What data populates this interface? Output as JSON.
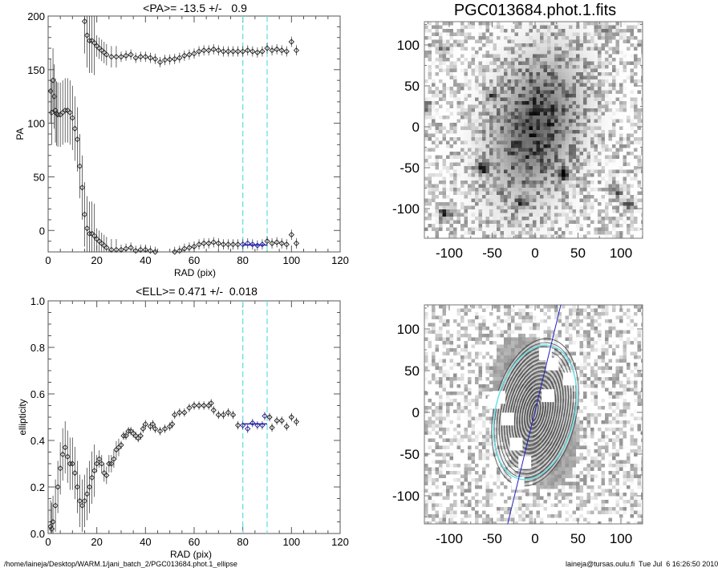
{
  "chart_data": [
    {
      "type": "scatter",
      "title": "<PA>= -13.5 +/-   0.9",
      "xlabel": "RAD (pix)",
      "ylabel": "PA",
      "xlim": [
        0,
        120
      ],
      "ylim": [
        -20,
        200
      ],
      "xticks": [
        "0",
        "20",
        "40",
        "60",
        "80",
        "100",
        "120"
      ],
      "yticks": [
        "0",
        "50",
        "100",
        "150",
        "200"
      ],
      "wrap_offset": 180,
      "mean": {
        "value": -13.5,
        "error": 0.9,
        "range": [
          80,
          90
        ],
        "color": "#2020b0"
      },
      "range_markers": [
        80,
        90
      ],
      "marker_color": "#66e0e8",
      "points": [
        [
          1,
          130
        ],
        [
          1.5,
          110
        ],
        [
          2,
          140
        ],
        [
          2.5,
          125
        ],
        [
          3,
          112
        ],
        [
          3.5,
          109
        ],
        [
          4,
          108
        ],
        [
          5,
          108
        ],
        [
          6,
          110
        ],
        [
          7,
          112
        ],
        [
          8,
          112
        ],
        [
          9,
          110
        ],
        [
          10,
          105
        ],
        [
          11,
          95
        ],
        [
          12,
          85
        ],
        [
          13,
          60
        ],
        [
          14,
          40
        ],
        [
          15,
          15
        ],
        [
          16,
          2
        ],
        [
          17,
          -3
        ],
        [
          18,
          -3
        ],
        [
          19,
          -5
        ],
        [
          20,
          -8
        ],
        [
          21,
          -10
        ],
        [
          22,
          -12
        ],
        [
          23,
          -14
        ],
        [
          24,
          -16
        ],
        [
          26,
          -18
        ],
        [
          28,
          -18
        ],
        [
          30,
          -18
        ],
        [
          32,
          -17
        ],
        [
          34,
          -16
        ],
        [
          36,
          -19
        ],
        [
          38,
          -18
        ],
        [
          40,
          -18
        ],
        [
          42,
          -19
        ],
        [
          44,
          -20
        ],
        [
          46,
          -23
        ],
        [
          48,
          -21
        ],
        [
          50,
          -20.5
        ],
        [
          52,
          -20
        ],
        [
          54,
          -19
        ],
        [
          56,
          -17
        ],
        [
          58,
          -16
        ],
        [
          60,
          -15
        ],
        [
          62,
          -13
        ],
        [
          64,
          -12
        ],
        [
          66,
          -12
        ],
        [
          68,
          -11
        ],
        [
          70,
          -12
        ],
        [
          72,
          -13
        ],
        [
          74,
          -13
        ],
        [
          76,
          -13
        ],
        [
          78,
          -13
        ],
        [
          80,
          -13
        ],
        [
          82,
          -12
        ],
        [
          84,
          -13
        ],
        [
          86,
          -14
        ],
        [
          88,
          -13
        ],
        [
          90,
          -10
        ],
        [
          92,
          -12
        ],
        [
          94,
          -11
        ],
        [
          96,
          -12
        ],
        [
          98,
          -13
        ],
        [
          100,
          -4
        ],
        [
          102,
          -12
        ]
      ]
    },
    {
      "type": "scatter",
      "title": "<ELL>= 0.471 +/-  0.018",
      "xlabel": "RAD (pix)",
      "ylabel": "ellipticity",
      "xlim": [
        0,
        120
      ],
      "ylim": [
        0,
        1
      ],
      "xticks": [
        "0",
        "20",
        "40",
        "60",
        "80",
        "100",
        "120"
      ],
      "yticks": [
        "0.0",
        "0.2",
        "0.4",
        "0.6",
        "0.8",
        "1.0"
      ],
      "mean": {
        "value": 0.471,
        "error": 0.018,
        "range": [
          80,
          90
        ],
        "color": "#2020b0"
      },
      "range_markers": [
        80,
        90
      ],
      "marker_color": "#66e0e8",
      "points": [
        [
          1,
          0.03
        ],
        [
          1.5,
          0.02
        ],
        [
          2,
          0.05
        ],
        [
          3,
          0.12
        ],
        [
          4,
          0.2
        ],
        [
          5,
          0.28
        ],
        [
          6,
          0.34
        ],
        [
          7,
          0.37
        ],
        [
          8,
          0.33
        ],
        [
          9,
          0.3
        ],
        [
          10,
          0.3
        ],
        [
          11,
          0.26
        ],
        [
          12,
          0.2
        ],
        [
          13,
          0.14
        ],
        [
          14,
          0.12
        ],
        [
          15,
          0.14
        ],
        [
          16,
          0.17
        ],
        [
          17,
          0.2
        ],
        [
          18,
          0.24
        ],
        [
          19,
          0.27
        ],
        [
          20,
          0.3
        ],
        [
          21,
          0.32
        ],
        [
          22,
          0.3
        ],
        [
          23,
          0.26
        ],
        [
          24,
          0.25
        ],
        [
          25,
          0.3
        ],
        [
          26,
          0.3
        ],
        [
          27,
          0.32
        ],
        [
          28,
          0.36
        ],
        [
          29,
          0.37
        ],
        [
          30,
          0.38
        ],
        [
          31,
          0.42
        ],
        [
          32,
          0.42
        ],
        [
          33,
          0.44
        ],
        [
          34,
          0.44
        ],
        [
          35,
          0.43
        ],
        [
          36,
          0.42
        ],
        [
          37,
          0.41
        ],
        [
          38,
          0.42
        ],
        [
          39,
          0.45
        ],
        [
          40,
          0.47
        ],
        [
          42,
          0.46
        ],
        [
          43,
          0.47
        ],
        [
          44,
          0.45
        ],
        [
          46,
          0.44
        ],
        [
          48,
          0.45
        ],
        [
          50,
          0.46
        ],
        [
          51,
          0.47
        ],
        [
          52,
          0.51
        ],
        [
          54,
          0.52
        ],
        [
          56,
          0.52
        ],
        [
          58,
          0.54
        ],
        [
          60,
          0.55
        ],
        [
          62,
          0.55
        ],
        [
          64,
          0.55
        ],
        [
          66,
          0.55
        ],
        [
          67,
          0.56
        ],
        [
          68,
          0.53
        ],
        [
          70,
          0.51
        ],
        [
          72,
          0.51
        ],
        [
          74,
          0.52
        ],
        [
          76,
          0.51
        ],
        [
          78,
          0.465
        ],
        [
          80,
          0.465
        ],
        [
          82,
          0.45
        ],
        [
          84,
          0.475
        ],
        [
          86,
          0.465
        ],
        [
          88,
          0.465
        ],
        [
          89,
          0.505
        ],
        [
          91,
          0.5
        ],
        [
          92,
          0.455
        ],
        [
          94,
          0.485
        ],
        [
          96,
          0.485
        ],
        [
          98,
          0.46
        ],
        [
          100,
          0.5
        ],
        [
          102,
          0.48
        ]
      ]
    }
  ],
  "images": [
    {
      "title": "PGC013684.phot.1.fits",
      "xticks": [
        "-100",
        "-50",
        "0",
        "50",
        "100"
      ],
      "yticks": [
        "100",
        "50",
        "0",
        "-50",
        "-100"
      ]
    },
    {
      "title": "",
      "xticks": [
        "-100",
        "-50",
        "0",
        "50",
        "100"
      ],
      "yticks": [
        "100",
        "50",
        "0",
        "-50",
        "-100"
      ],
      "ellipse_color": "#66e0e8",
      "pa_line_color": "#2020c0"
    }
  ],
  "footer": {
    "path": "/home/laineja/Desktop/WARM.1/jani_batch_2/PGC013684.phot.1_ellipse",
    "stamp": "laineja@tursas.oulu.fi  Tue Jul  6 16:26:50 2010"
  }
}
